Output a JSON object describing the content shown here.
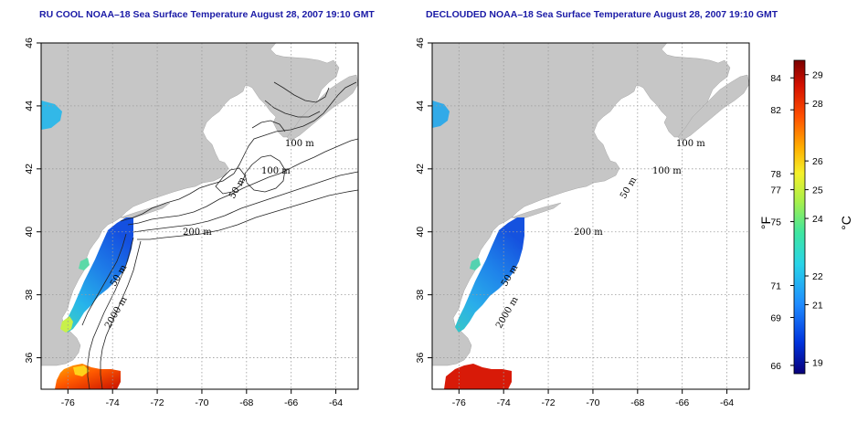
{
  "panels": [
    {
      "id": "rucool",
      "title": "RU COOL NOAA–18 Sea Surface Temperature August 28, 2007 19:10 GMT"
    },
    {
      "id": "declouded",
      "title": "DECLOUDED NOAA–18 Sea Surface Temperature August 28, 2007 19:10 GMT"
    }
  ],
  "axes": {
    "lon_ticks": [
      "-76",
      "-74",
      "-72",
      "-70",
      "-68",
      "-66",
      "-64"
    ],
    "lat_ticks": [
      "36",
      "38",
      "40",
      "42",
      "44",
      "46"
    ],
    "lon_range": [
      -77.2,
      -63.0
    ],
    "lat_range": [
      35.0,
      46.0
    ],
    "grid": "dotted"
  },
  "contour_labels": [
    "100 m",
    "100 m",
    "50 m",
    "200 m",
    "50 m",
    "2000 m"
  ],
  "colorbar": {
    "fahrenheit_ticks": [
      "84",
      "82",
      "78",
      "77",
      "75",
      "71",
      "69",
      "66"
    ],
    "celsius_ticks": [
      "29",
      "28",
      "26",
      "25",
      "24",
      "22",
      "21",
      "19"
    ],
    "fahrenheit_unit": "°F",
    "celsius_unit": "°C",
    "range_c": [
      18.6,
      29.5
    ],
    "colors": [
      "#08007a",
      "#0033dd",
      "#1f8bff",
      "#29d4e8",
      "#3ee6a0",
      "#a8f04a",
      "#f5f02a",
      "#ffb000",
      "#ff5000",
      "#d41000",
      "#7a0000"
    ]
  },
  "colors": {
    "land": "#c6c6c6",
    "title": "#1a1aa6",
    "sst_cold": "#1560e6",
    "sst_cool": "#26b8e8",
    "sst_warm": "#e01a10"
  }
}
